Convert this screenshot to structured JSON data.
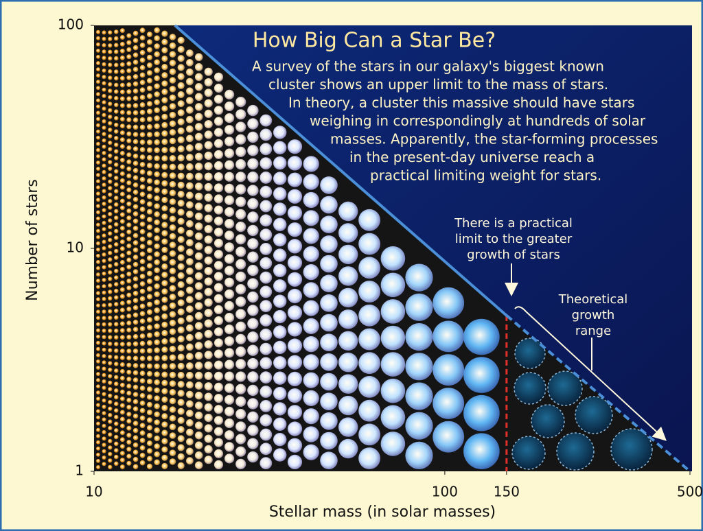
{
  "chart_data": {
    "type": "line",
    "title": "How Big Can a Star Be?",
    "description": [
      "A survey of the stars in our galaxy's biggest known",
      "cluster shows an upper limit to the mass of stars.",
      "In theory, a cluster this massive should have stars",
      "weighing in correspondingly at hundreds of solar",
      "masses. Apparently, the star-forming processes",
      "in the present-day universe reach a",
      "practical limiting weight for stars."
    ],
    "annotations": [
      [
        "There is a practical",
        "limit to the greater",
        "growth of stars"
      ],
      [
        "Theoretical",
        "growth",
        "range"
      ]
    ],
    "x_label": "Stellar mass (in solar masses)",
    "y_label": "Number of stars",
    "x_log": true,
    "y_log": true,
    "xlim": [
      10,
      500
    ],
    "xticks": [
      10,
      100,
      150,
      500
    ],
    "ylim": [
      1,
      100
    ],
    "yticks": [
      1,
      10,
      100
    ],
    "series": [
      {
        "color": "#4a8fd8",
        "x": [
          17,
          150
        ],
        "values": [
          100,
          5
        ],
        "line_style": "solid"
      },
      {
        "color": "#4a8fd8",
        "x": [
          150,
          500
        ],
        "values": [
          5,
          1
        ],
        "line_style": "dashed"
      }
    ],
    "cutoff": {
      "x": 150,
      "color": "#e0302a"
    }
  }
}
